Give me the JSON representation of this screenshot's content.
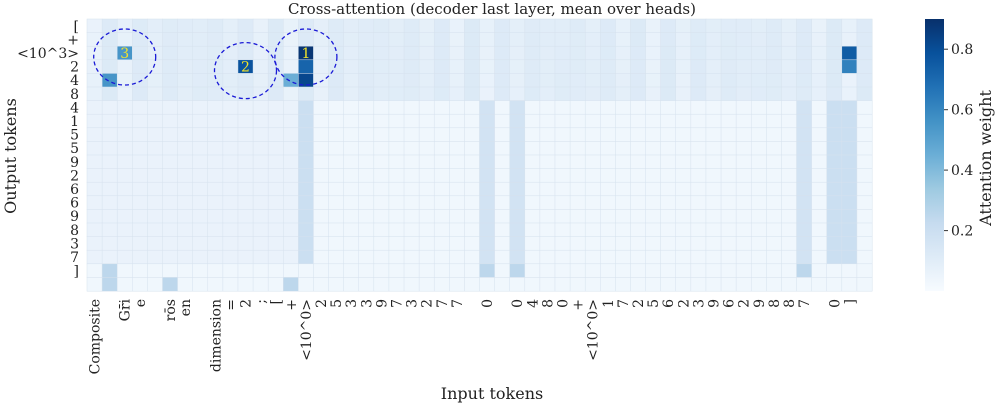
{
  "chart_data": {
    "type": "heatmap",
    "title": "Cross-attention (decoder last layer, mean over heads)",
    "xlabel": "Input tokens",
    "ylabel": "Output tokens",
    "colorbar_label": "Attention weight",
    "colorbar_ticks": [
      "0.2",
      "0.4",
      "0.6",
      "0.8"
    ],
    "colorbar_tick_values": [
      0.2,
      0.4,
      0.6,
      0.8
    ],
    "value_range": [
      0.0,
      0.9
    ],
    "colormap": [
      "#f7fbff",
      "#deebf7",
      "#c6dbef",
      "#9ecae1",
      "#6baed6",
      "#4292c6",
      "#2171b5",
      "#08519c",
      "#08306b"
    ],
    "x_tokens": [
      "Composite",
      "",
      "Gr̄i",
      "e",
      "",
      "rōs",
      "en",
      "",
      "dimension",
      "=",
      "2",
      ";",
      "[",
      "+",
      "<10^0>",
      "2",
      "5",
      "3",
      "3",
      "9",
      "7",
      "3",
      "2",
      "7",
      "7",
      "",
      "0",
      "",
      "0",
      "4",
      "8",
      "0",
      "+",
      "<10^0>",
      "1",
      "7",
      "2",
      "5",
      "6",
      "2",
      "3",
      "9",
      "6",
      "2",
      "9",
      "8",
      "8",
      "7",
      "",
      "0",
      "]",
      ""
    ],
    "y_tokens": [
      "[",
      "+",
      "<10^3>",
      "2",
      "4",
      "8",
      "4",
      "1",
      "5",
      "5",
      "9",
      "2",
      "6",
      "6",
      "9",
      "8",
      "3",
      "7",
      "]",
      ""
    ],
    "annotations": [
      {
        "label": "3",
        "row": 2,
        "col": 2
      },
      {
        "label": "2",
        "row": 3,
        "col": 10
      },
      {
        "label": "1",
        "row": 2,
        "col": 14
      }
    ],
    "strong_cells": [
      {
        "row": 2,
        "col": 14,
        "value": 0.88
      },
      {
        "row": 3,
        "col": 10,
        "value": 0.78
      },
      {
        "row": 3,
        "col": 14,
        "value": 0.72
      },
      {
        "row": 4,
        "col": 14,
        "value": 0.82
      },
      {
        "row": 2,
        "col": 2,
        "value": 0.55
      },
      {
        "row": 4,
        "col": 1,
        "value": 0.55
      },
      {
        "row": 2,
        "col": 50,
        "value": 0.75
      },
      {
        "row": 3,
        "col": 50,
        "value": 0.62
      },
      {
        "row": 4,
        "col": 13,
        "value": 0.45
      }
    ]
  }
}
